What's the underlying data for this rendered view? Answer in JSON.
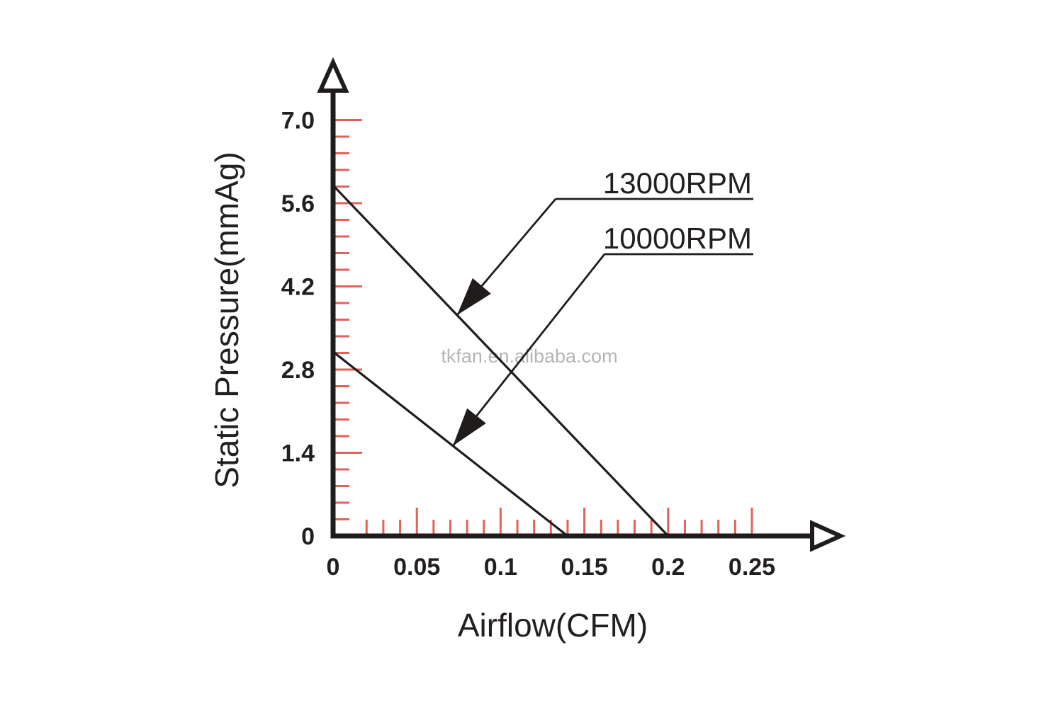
{
  "chart_data": {
    "type": "line",
    "title": "",
    "xlabel": "Airflow(CFM)",
    "ylabel": "Static Pressure(mmAg)",
    "watermark": "tkfan.en.alibaba.com",
    "xlim": [
      0,
      0.29
    ],
    "ylim": [
      0,
      7.9
    ],
    "grid": false,
    "legend_position": "leader-line annotations inside plot",
    "x_ticks": [
      {
        "v": 0,
        "label": "0"
      },
      {
        "v": 0.05,
        "label": "0.05"
      },
      {
        "v": 0.1,
        "label": "0.1"
      },
      {
        "v": 0.15,
        "label": "0.15"
      },
      {
        "v": 0.2,
        "label": "0.2"
      },
      {
        "v": 0.25,
        "label": "0.25"
      }
    ],
    "x_minor_step": 0.01,
    "x_minor_first": 0.02,
    "x_minor_last": 0.25,
    "y_ticks": [
      {
        "v": 0,
        "label": "0"
      },
      {
        "v": 1.4,
        "label": "1.4"
      },
      {
        "v": 2.8,
        "label": "2.8"
      },
      {
        "v": 4.2,
        "label": "4.2"
      },
      {
        "v": 5.6,
        "label": "5.6"
      },
      {
        "v": 7.0,
        "label": "7.0"
      }
    ],
    "y_minor_step": 0.28,
    "y_minor_first": 0.28,
    "y_minor_last": 7.0,
    "colors": {
      "axis": "#201c1c",
      "curve": "#201c1c",
      "tick": "#e2625a",
      "text": "#231f1f",
      "watermark": "#b5b5b5"
    },
    "series": [
      {
        "name": "13000RPM",
        "points": [
          [
            0,
            5.9
          ],
          [
            0.2,
            0
          ]
        ]
      },
      {
        "name": "10000RPM",
        "points": [
          [
            0,
            3.1
          ],
          [
            0.14,
            0
          ]
        ]
      }
    ],
    "annotations": [
      {
        "label": "13000RPM",
        "series": 0,
        "target_x": 0.074
      },
      {
        "label": "10000RPM",
        "series": 1,
        "target_x": 0.0715
      }
    ]
  }
}
